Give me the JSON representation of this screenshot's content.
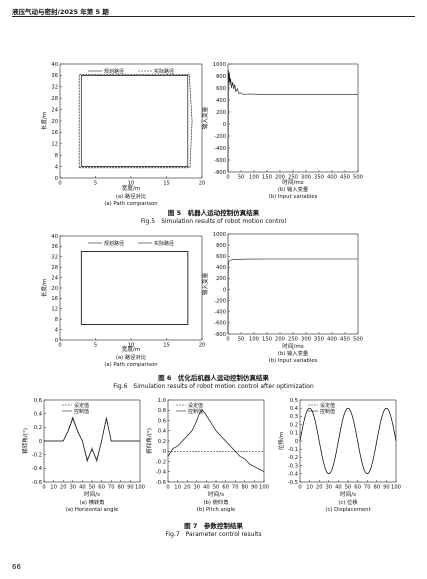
{
  "header": {
    "running_title": "液压气动与密封/2025 年第 5 期"
  },
  "page_number": "66",
  "fig5": {
    "caption_cn": "图 5　机器人运动控制仿真结果",
    "caption_en": "Fig.5　Simulation results of robot motion control",
    "panel_a": {
      "xlabel": "宽度/m",
      "ylabel": "长度/m",
      "sub_cn": "(a) 路径对比",
      "sub_en": "(a) Path comparison",
      "legend": [
        "规划路径",
        "实际路径"
      ],
      "xticks": [
        "0",
        "5",
        "10",
        "15",
        "20"
      ],
      "yticks": [
        "40",
        "36",
        "32",
        "28",
        "24",
        "20",
        "16",
        "12",
        "8",
        "4",
        "0"
      ]
    },
    "panel_b": {
      "xlabel": "时间/ms",
      "ylabel": "输入变量",
      "sub_cn": "(b) 输入变量",
      "sub_en": "(b) Input variables",
      "xticks": [
        "0",
        "50",
        "100",
        "150",
        "200",
        "250",
        "300",
        "350",
        "400",
        "450",
        "500"
      ],
      "yticks": [
        "1000",
        "800",
        "600",
        "400",
        "200",
        "0",
        "-200",
        "-400",
        "-600",
        "-800"
      ]
    }
  },
  "fig6": {
    "caption_cn": "图 6　优化后机器人运动控制仿真结果",
    "caption_en": "Fig.6　Simulation results of robot motion control after optimization",
    "panel_a": {
      "xlabel": "宽度/m",
      "ylabel": "长度/m",
      "sub_cn": "(a) 路径对比",
      "sub_en": "(a) Path comparison",
      "legend": [
        "规划路径",
        "实际路径"
      ],
      "xticks": [
        "0",
        "5",
        "10",
        "15",
        "20"
      ],
      "yticks": [
        "40",
        "36",
        "32",
        "28",
        "24",
        "20",
        "16",
        "12",
        "8",
        "4",
        "0"
      ]
    },
    "panel_b": {
      "xlabel": "时间/ms",
      "ylabel": "输入变量",
      "sub_cn": "(b) 输入变量",
      "sub_en": "(b) Input variables",
      "xticks": [
        "0",
        "50",
        "100",
        "150",
        "200",
        "250",
        "300",
        "350",
        "400",
        "450",
        "500"
      ],
      "yticks": [
        "1000",
        "800",
        "600",
        "400",
        "200",
        "0",
        "-200",
        "-400",
        "-600",
        "-800"
      ]
    }
  },
  "fig7": {
    "caption_cn": "图 7　参数控制结果",
    "caption_en": "Fig.7　Parameter control results",
    "panel_a": {
      "xlabel": "时间/s",
      "ylabel": "横转角/(°)",
      "sub_cn": "(a) 横转角",
      "sub_en": "(a) Horizontal angle",
      "legend": [
        "设定值",
        "控制值"
      ],
      "xticks": [
        "0",
        "10",
        "20",
        "30",
        "40",
        "50",
        "60",
        "70",
        "80",
        "90",
        "100"
      ],
      "yticks": [
        "0.6",
        "0.4",
        "0.2",
        "0",
        "-0.2",
        "-0.4",
        "-0.6"
      ]
    },
    "panel_b": {
      "xlabel": "时间/s",
      "ylabel": "俯仰角/(°)",
      "sub_cn": "(b) 俯仰角",
      "sub_en": "(b) Pitch angle",
      "legend": [
        "设定值",
        "控制值"
      ],
      "xticks": [
        "0",
        "10",
        "20",
        "30",
        "40",
        "50",
        "60",
        "70",
        "80",
        "90",
        "100"
      ],
      "yticks": [
        "1.0",
        "0.8",
        "0.6",
        "0.4",
        "0.2",
        "0",
        "-0.2",
        "-0.4",
        "-0.6"
      ]
    },
    "panel_c": {
      "xlabel": "时间/s",
      "ylabel": "位移/m",
      "sub_cn": "(c) 位移",
      "sub_en": "(c) Displacement",
      "legend": [
        "设定值",
        "控制值"
      ],
      "xticks": [
        "0",
        "10",
        "20",
        "30",
        "40",
        "50",
        "60",
        "70",
        "80",
        "90",
        "100"
      ],
      "yticks": [
        "0.5",
        "0.4",
        "0.3",
        "0.2",
        "0.1",
        "0",
        "-0.1",
        "-0.2",
        "-0.3",
        "-0.4",
        "-0.5"
      ]
    }
  },
  "chart_data": [
    {
      "id": "fig5a",
      "type": "line",
      "xlim": [
        0,
        20
      ],
      "ylim": [
        0,
        40
      ],
      "series": [
        {
          "name": "规划路径",
          "x": [
            3,
            18,
            18,
            3,
            3
          ],
          "y": [
            4,
            4,
            36,
            36,
            4
          ]
        },
        {
          "name": "实际路径",
          "x": [
            2.7,
            18.3,
            18.6,
            18.2,
            2.7,
            2.7
          ],
          "y": [
            3.6,
            3.6,
            20,
            36.3,
            36.3,
            3.6
          ]
        }
      ]
    },
    {
      "id": "fig5b",
      "type": "line",
      "xlim": [
        0,
        500
      ],
      "ylim": [
        -800,
        1000
      ],
      "series": [
        {
          "name": "",
          "x": [
            0,
            2,
            4,
            6,
            8,
            10,
            14,
            18,
            22,
            26,
            30,
            36,
            42,
            50,
            60,
            80,
            120,
            200,
            300,
            400,
            500
          ],
          "y": [
            -780,
            900,
            700,
            860,
            640,
            760,
            600,
            700,
            580,
            660,
            540,
            590,
            510,
            520,
            490,
            500,
            495,
            495,
            495,
            495,
            495
          ]
        }
      ]
    },
    {
      "id": "fig6a",
      "type": "line",
      "xlim": [
        0,
        20
      ],
      "ylim": [
        0,
        40
      ],
      "series": [
        {
          "name": "规划路径",
          "x": [
            3,
            18,
            18,
            3,
            3
          ],
          "y": [
            6,
            6,
            34,
            34,
            6
          ]
        },
        {
          "name": "实际路径",
          "x": [
            3,
            18,
            18,
            3,
            3
          ],
          "y": [
            6,
            6,
            34,
            34,
            6
          ]
        }
      ]
    },
    {
      "id": "fig6b",
      "type": "line",
      "xlim": [
        0,
        500
      ],
      "ylim": [
        -800,
        1000
      ],
      "series": [
        {
          "name": "",
          "x": [
            0,
            1,
            3,
            6,
            10,
            20,
            40,
            80,
            150,
            250,
            350,
            500
          ],
          "y": [
            -780,
            450,
            500,
            520,
            530,
            540,
            545,
            548,
            550,
            550,
            550,
            550
          ]
        }
      ]
    },
    {
      "id": "fig7a",
      "type": "line",
      "xlim": [
        0,
        100
      ],
      "ylim": [
        -0.6,
        0.6
      ],
      "series": [
        {
          "name": "设定值",
          "x": [
            0,
            20,
            25,
            30,
            35,
            40,
            45,
            50,
            55,
            60,
            65,
            70,
            100
          ],
          "y": [
            0,
            0,
            0.15,
            0.35,
            0.15,
            0,
            -0.3,
            -0.1,
            -0.3,
            0,
            0.35,
            0,
            0
          ]
        },
        {
          "name": "控制值",
          "x": [
            0,
            20,
            25,
            30,
            35,
            40,
            45,
            50,
            55,
            60,
            65,
            70,
            100
          ],
          "y": [
            0,
            0,
            0.14,
            0.33,
            0.14,
            0,
            -0.28,
            -0.12,
            -0.28,
            0,
            0.33,
            0,
            0
          ]
        }
      ]
    },
    {
      "id": "fig7b",
      "type": "line",
      "xlim": [
        0,
        100
      ],
      "ylim": [
        -0.6,
        1.0
      ],
      "series": [
        {
          "name": "设定值",
          "x": [
            0,
            10,
            20,
            30,
            35,
            40,
            45,
            50,
            60,
            70,
            80,
            90,
            100
          ],
          "y": [
            0,
            0,
            0,
            0,
            0,
            0,
            0,
            0,
            0,
            0,
            0,
            0,
            0
          ]
        },
        {
          "name": "控制值",
          "x": [
            0,
            5,
            10,
            15,
            20,
            25,
            30,
            33,
            36,
            40,
            45,
            50,
            55,
            60,
            65,
            70,
            75,
            80,
            85,
            90,
            95,
            100
          ],
          "y": [
            -0.1,
            0.05,
            0.1,
            0.2,
            0.3,
            0.4,
            0.6,
            0.75,
            0.8,
            0.7,
            0.55,
            0.4,
            0.3,
            0.2,
            0.1,
            0.0,
            -0.1,
            -0.15,
            -0.25,
            -0.3,
            -0.35,
            -0.4
          ]
        }
      ]
    },
    {
      "id": "fig7c",
      "type": "line",
      "xlim": [
        0,
        100
      ],
      "ylim": [
        -0.5,
        0.5
      ],
      "series": [
        {
          "name": "设定值",
          "amplitude": 0.4,
          "period": 40,
          "phase_deg": 0
        },
        {
          "name": "控制值",
          "amplitude": 0.4,
          "period": 40,
          "phase_deg": 0
        }
      ]
    }
  ]
}
